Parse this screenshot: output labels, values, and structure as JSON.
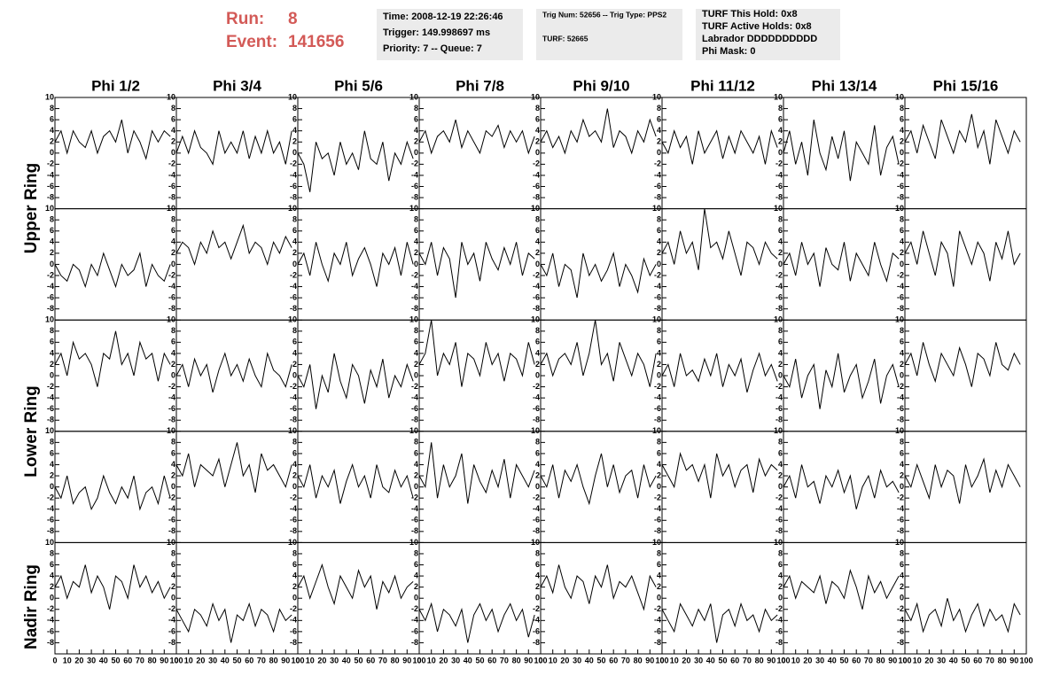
{
  "header": {
    "run_label": "Run:",
    "run": "8",
    "event_label": "Event:",
    "event": "141656"
  },
  "info_boxes": [
    [
      "Time: 2008-12-19 22:26:46",
      "Trigger: 149.998697 ms",
      "Priority: 7 -- Queue: 7"
    ],
    [
      "Trig Num: 52656 -- Trig Type: PPS2",
      "TURF: 52665"
    ],
    [
      "TURF This Hold: 0x8",
      "TURF Active Holds: 0x8",
      "Labrador DDDDDDDDDD",
      "Phi Mask: 0"
    ]
  ],
  "columns": [
    "Phi 1/2",
    "Phi 3/4",
    "Phi 5/6",
    "Phi 7/8",
    "Phi 9/10",
    "Phi 11/12",
    "Phi 13/14",
    "Phi 15/16"
  ],
  "rows": [
    "Upper Ring",
    "Lower Ring",
    "Nadir Ring"
  ],
  "axes": {
    "xlim": [
      0,
      100
    ],
    "ylim": [
      -10,
      10
    ],
    "xticks": [
      0,
      10,
      20,
      30,
      40,
      50,
      60,
      70,
      80,
      90,
      100
    ],
    "yticks": [
      -8,
      -6,
      -4,
      -2,
      0,
      2,
      4,
      6,
      8,
      10
    ],
    "sample_x": [
      0,
      5,
      10,
      15,
      20,
      25,
      30,
      35,
      40,
      45,
      50,
      55,
      60,
      65,
      70,
      75,
      80,
      85,
      90,
      95
    ]
  },
  "panels": [
    [
      [
        2,
        4,
        0,
        4,
        2,
        1,
        4,
        0,
        3,
        4,
        2,
        6,
        0,
        4,
        2,
        -1,
        4,
        2,
        4,
        3
      ],
      [
        0,
        3,
        0,
        4,
        1,
        0,
        -2,
        4,
        0,
        2,
        0,
        4,
        -1,
        3,
        0,
        4,
        0,
        2,
        -2,
        4
      ],
      [
        0,
        -2,
        -7,
        2,
        -1,
        0,
        -4,
        2,
        -2,
        0,
        -3,
        4,
        -1,
        -2,
        2,
        -5,
        0,
        -2,
        2,
        -1
      ],
      [
        2,
        4,
        0,
        3,
        4,
        2,
        6,
        1,
        4,
        2,
        0,
        4,
        3,
        5,
        1,
        4,
        2,
        4,
        0,
        3
      ],
      [
        2,
        4,
        1,
        3,
        0,
        4,
        2,
        6,
        3,
        4,
        2,
        8,
        1,
        4,
        3,
        0,
        4,
        2,
        6,
        3
      ],
      [
        2,
        0,
        4,
        1,
        3,
        -2,
        4,
        0,
        2,
        4,
        -1,
        3,
        0,
        4,
        2,
        0,
        3,
        -2,
        4,
        1
      ],
      [
        0,
        4,
        -2,
        2,
        -4,
        6,
        0,
        -3,
        3,
        -1,
        4,
        -5,
        2,
        0,
        -2,
        5,
        -4,
        1,
        3,
        -2
      ],
      [
        2,
        4,
        0,
        5,
        2,
        -1,
        6,
        3,
        0,
        4,
        2,
        7,
        1,
        4,
        -2,
        6,
        3,
        0,
        4,
        2
      ]
    ],
    [
      [
        0,
        -2,
        -3,
        0,
        -1,
        -4,
        0,
        -2,
        2,
        -1,
        -4,
        0,
        -2,
        -1,
        2,
        -4,
        0,
        -2,
        -3,
        0
      ],
      [
        2,
        4,
        3,
        0,
        4,
        2,
        6,
        3,
        4,
        1,
        4,
        7,
        2,
        4,
        3,
        0,
        4,
        2,
        5,
        3
      ],
      [
        0,
        2,
        -2,
        4,
        0,
        -3,
        2,
        0,
        4,
        -2,
        1,
        3,
        0,
        -4,
        2,
        0,
        3,
        -2,
        4,
        0
      ],
      [
        2,
        0,
        4,
        -2,
        3,
        1,
        -6,
        4,
        0,
        2,
        -3,
        4,
        1,
        -1,
        3,
        0,
        4,
        -2,
        2,
        1
      ],
      [
        0,
        -2,
        2,
        -4,
        0,
        -1,
        -6,
        2,
        -2,
        0,
        -3,
        -1,
        2,
        -4,
        0,
        -2,
        -5,
        1,
        -2,
        0
      ],
      [
        2,
        4,
        0,
        6,
        2,
        4,
        -1,
        10,
        3,
        4,
        1,
        6,
        2,
        -2,
        4,
        3,
        0,
        4,
        2,
        1
      ],
      [
        0,
        2,
        -2,
        4,
        0,
        2,
        -4,
        3,
        0,
        -1,
        4,
        -3,
        2,
        0,
        -2,
        4,
        0,
        -3,
        2,
        1
      ],
      [
        2,
        4,
        0,
        6,
        2,
        -2,
        4,
        2,
        -4,
        6,
        3,
        0,
        4,
        2,
        -3,
        4,
        1,
        6,
        0,
        2
      ]
    ],
    [
      [
        2,
        4,
        0,
        6,
        3,
        4,
        2,
        -2,
        4,
        3,
        8,
        2,
        4,
        0,
        6,
        3,
        4,
        -1,
        4,
        2
      ],
      [
        0,
        2,
        -2,
        3,
        0,
        2,
        -3,
        1,
        4,
        0,
        2,
        -1,
        3,
        0,
        -2,
        4,
        1,
        0,
        -2,
        2
      ],
      [
        0,
        -2,
        2,
        -6,
        0,
        -3,
        4,
        -1,
        -4,
        2,
        0,
        -5,
        1,
        -2,
        3,
        -4,
        0,
        -2,
        2,
        -1
      ],
      [
        2,
        4,
        10,
        0,
        4,
        2,
        6,
        -2,
        4,
        3,
        0,
        6,
        2,
        4,
        -1,
        4,
        3,
        0,
        6,
        2
      ],
      [
        2,
        4,
        0,
        3,
        4,
        2,
        6,
        0,
        4,
        10,
        2,
        4,
        -1,
        6,
        3,
        0,
        4,
        2,
        -2,
        4
      ],
      [
        0,
        2,
        -2,
        4,
        0,
        1,
        -1,
        3,
        0,
        4,
        -2,
        2,
        0,
        3,
        -3,
        1,
        4,
        0,
        2,
        -1
      ],
      [
        0,
        -2,
        3,
        -4,
        0,
        2,
        -6,
        1,
        -2,
        4,
        -3,
        0,
        2,
        -4,
        -1,
        3,
        -5,
        0,
        2,
        -2
      ],
      [
        2,
        4,
        0,
        6,
        2,
        -1,
        4,
        2,
        0,
        5,
        2,
        -2,
        4,
        3,
        0,
        6,
        2,
        1,
        4,
        2
      ]
    ],
    [
      [
        0,
        -2,
        2,
        -3,
        -1,
        0,
        -4,
        -2,
        2,
        -1,
        -3,
        0,
        -2,
        2,
        -4,
        -1,
        0,
        -3,
        2,
        -2
      ],
      [
        4,
        2,
        6,
        0,
        4,
        3,
        2,
        5,
        0,
        4,
        8,
        2,
        4,
        -1,
        6,
        3,
        4,
        2,
        0,
        4
      ],
      [
        2,
        0,
        4,
        -2,
        2,
        0,
        3,
        -3,
        1,
        4,
        0,
        2,
        -2,
        4,
        0,
        -1,
        3,
        0,
        2,
        -2
      ],
      [
        2,
        0,
        8,
        -2,
        4,
        0,
        2,
        6,
        -3,
        4,
        1,
        -1,
        3,
        0,
        5,
        -2,
        4,
        2,
        0,
        3
      ],
      [
        2,
        0,
        4,
        -2,
        3,
        1,
        4,
        0,
        -3,
        2,
        6,
        0,
        4,
        -1,
        2,
        3,
        -2,
        4,
        0,
        2
      ],
      [
        4,
        2,
        0,
        6,
        3,
        4,
        1,
        4,
        -2,
        6,
        2,
        4,
        0,
        3,
        4,
        -1,
        5,
        2,
        4,
        3
      ],
      [
        0,
        2,
        -2,
        4,
        0,
        1,
        -3,
        2,
        0,
        3,
        -1,
        2,
        -4,
        0,
        2,
        -2,
        3,
        0,
        1,
        -1
      ],
      [
        2,
        0,
        4,
        1,
        -2,
        4,
        0,
        3,
        2,
        -3,
        4,
        0,
        2,
        5,
        -1,
        3,
        0,
        4,
        2,
        0
      ]
    ],
    [
      [
        2,
        4,
        0,
        3,
        2,
        6,
        1,
        4,
        2,
        -2,
        4,
        3,
        0,
        6,
        2,
        4,
        1,
        3,
        0,
        2
      ],
      [
        -2,
        -4,
        -6,
        -2,
        -3,
        -5,
        -1,
        -4,
        -2,
        -8,
        -3,
        -4,
        -1,
        -5,
        -2,
        -3,
        -6,
        -2,
        -4,
        -3
      ],
      [
        2,
        4,
        0,
        3,
        6,
        2,
        -1,
        4,
        2,
        0,
        5,
        2,
        4,
        -2,
        3,
        1,
        4,
        0,
        2,
        3
      ],
      [
        -2,
        -4,
        -1,
        -6,
        -2,
        -3,
        -5,
        -2,
        -8,
        -3,
        -1,
        -4,
        -2,
        -6,
        -3,
        -1,
        -4,
        -2,
        -7,
        -3
      ],
      [
        2,
        4,
        1,
        6,
        2,
        0,
        4,
        3,
        -1,
        4,
        2,
        6,
        0,
        3,
        2,
        4,
        1,
        -2,
        4,
        2
      ],
      [
        -2,
        -4,
        -6,
        -1,
        -3,
        -5,
        -2,
        -4,
        -1,
        -8,
        -3,
        -2,
        -5,
        -1,
        -4,
        -3,
        -6,
        -2,
        -4,
        -3
      ],
      [
        2,
        4,
        0,
        3,
        2,
        1,
        4,
        -1,
        3,
        2,
        0,
        5,
        2,
        -2,
        4,
        1,
        3,
        0,
        2,
        4
      ],
      [
        -2,
        -4,
        -1,
        -6,
        -3,
        -2,
        -5,
        0,
        -4,
        -2,
        -6,
        -3,
        -1,
        -5,
        -2,
        -4,
        -3,
        -6,
        -1,
        -3
      ]
    ]
  ]
}
